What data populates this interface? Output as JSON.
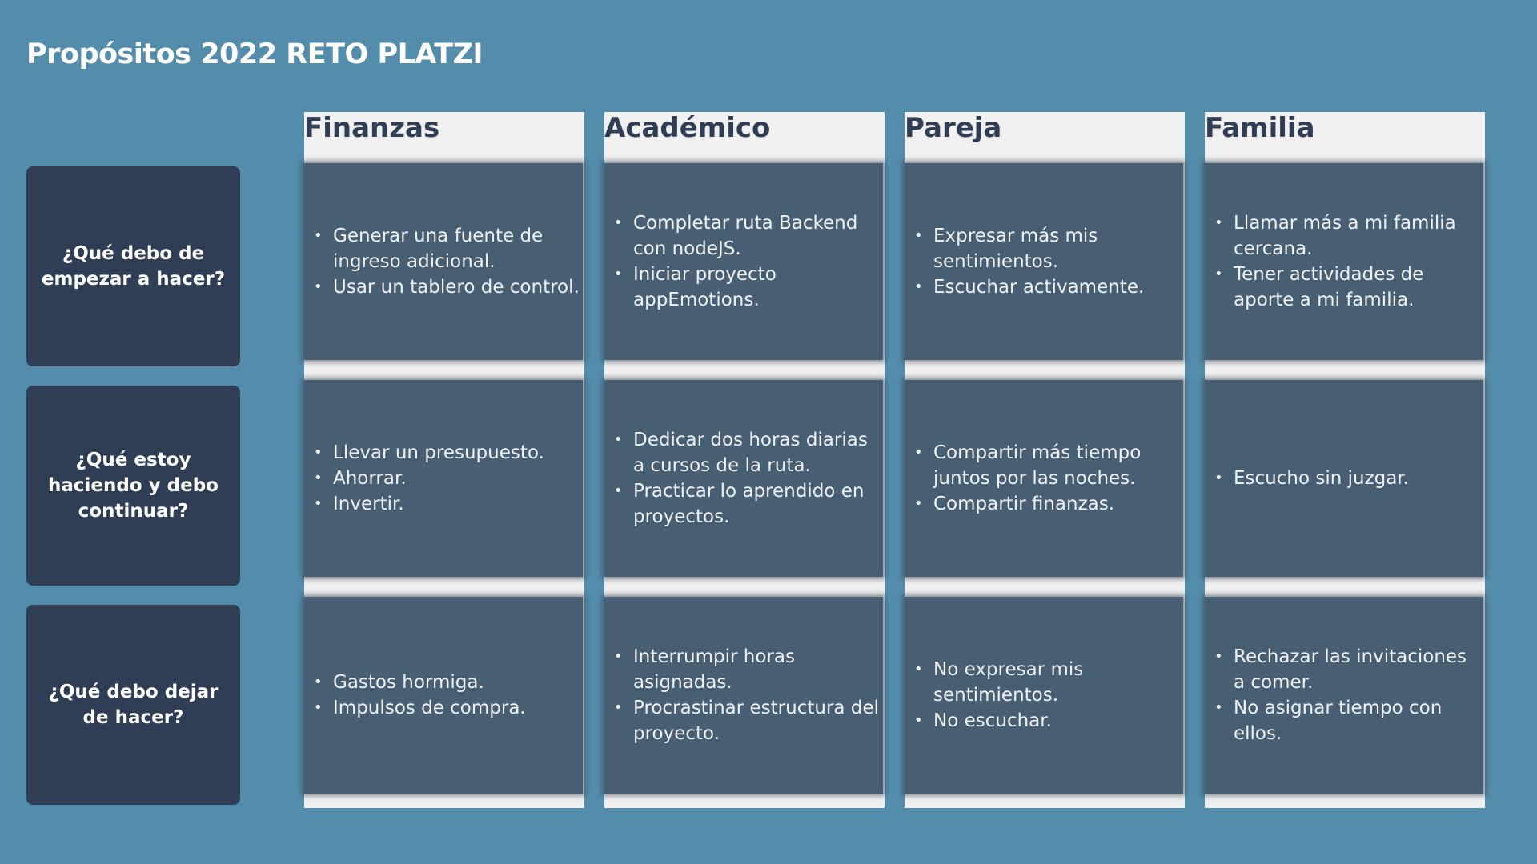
{
  "title": {
    "prefix": "Propósitos ",
    "year": "2022",
    "suffix": " RETO PLATZI"
  },
  "row_labels": [
    "¿Qué debo de empezar a hacer?",
    "¿Qué estoy haciendo y debo continuar?",
    "¿Qué debo dejar de hacer?"
  ],
  "columns": [
    {
      "header": "Finanzas",
      "cells": [
        [
          "Generar una fuente de ingreso adicional.",
          "Usar un tablero de control."
        ],
        [
          "Llevar un presupuesto.",
          "Ahorrar.",
          "Invertir."
        ],
        [
          "Gastos hormiga.",
          "Impulsos de compra."
        ]
      ]
    },
    {
      "header": "Académico",
      "cells": [
        [
          "Completar ruta Backend con nodeJS.",
          "Iniciar proyecto appEmotions."
        ],
        [
          "Dedicar dos horas diarias a cursos de la ruta.",
          "Practicar lo aprendido en proyectos."
        ],
        [
          "Interrumpir horas asignadas.",
          "Procrastinar estructura del proyecto."
        ]
      ]
    },
    {
      "header": "Pareja",
      "cells": [
        [
          "Expresar más mis sentimientos.",
          "Escuchar activamente."
        ],
        [
          "Compartir más tiempo juntos por las noches.",
          "Compartir finanzas."
        ],
        [
          "No expresar mis sentimientos.",
          "No escuchar."
        ]
      ]
    },
    {
      "header": "Familia",
      "cells": [
        [
          "Llamar más a mi familia cercana.",
          "Tener actividades de aporte a mi familia."
        ],
        [
          "Escucho sin juzgar."
        ],
        [
          "Rechazar las invitaciones a comer.",
          "No asignar tiempo con ellos."
        ]
      ]
    }
  ]
}
